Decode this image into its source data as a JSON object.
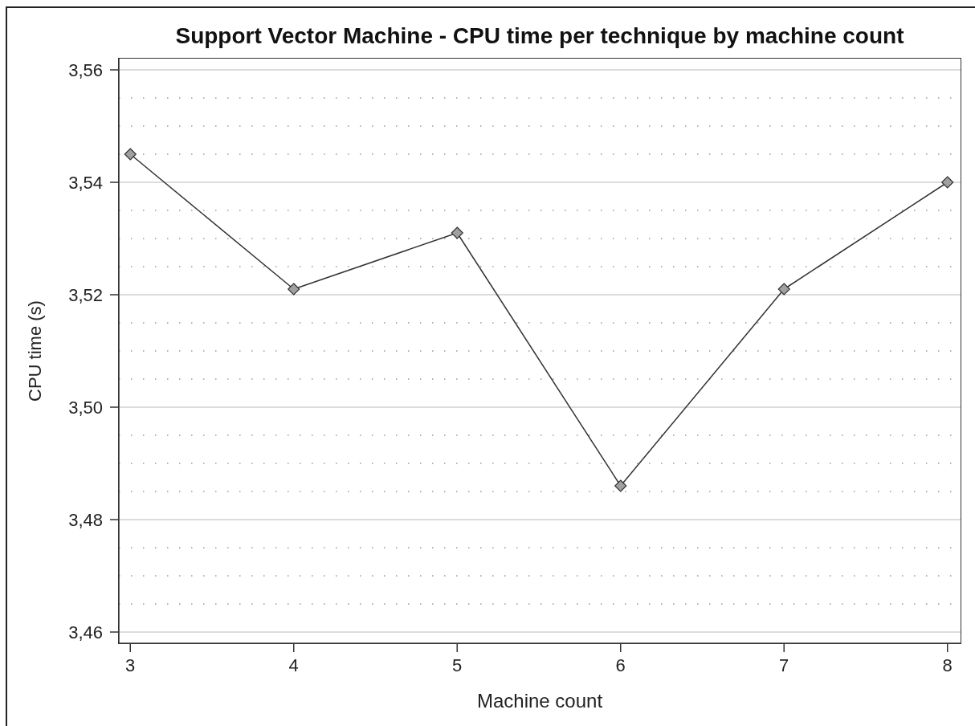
{
  "chart_data": {
    "type": "line",
    "title": "Support Vector Machine - CPU time per technique by machine count",
    "xlabel": "Machine count",
    "ylabel": "CPU time (s)",
    "x": [
      3,
      4,
      5,
      6,
      7,
      8
    ],
    "series": [
      {
        "color": "#333333",
        "values": [
          3.545,
          3.521,
          3.531,
          3.486,
          3.521,
          3.54
        ]
      }
    ],
    "xlim": [
      2.93,
      8.08
    ],
    "xticks": [
      3,
      4,
      5,
      6,
      7,
      8
    ],
    "ylim": [
      3.458,
      3.562
    ],
    "yticks": [
      {
        "value": 3.46,
        "label": "3,46"
      },
      {
        "value": 3.465,
        "label": null
      },
      {
        "value": 3.47,
        "label": null
      },
      {
        "value": 3.475,
        "label": null
      },
      {
        "value": 3.48,
        "label": "3,48"
      },
      {
        "value": 3.485,
        "label": null
      },
      {
        "value": 3.49,
        "label": null
      },
      {
        "value": 3.495,
        "label": null
      },
      {
        "value": 3.5,
        "label": "3,50"
      },
      {
        "value": 3.505,
        "label": null
      },
      {
        "value": 3.51,
        "label": null
      },
      {
        "value": 3.515,
        "label": null
      },
      {
        "value": 3.52,
        "label": "3,52"
      },
      {
        "value": 3.525,
        "label": null
      },
      {
        "value": 3.53,
        "label": null
      },
      {
        "value": 3.535,
        "label": null
      },
      {
        "value": 3.54,
        "label": "3,54"
      },
      {
        "value": 3.545,
        "label": null
      },
      {
        "value": 3.55,
        "label": null
      },
      {
        "value": 3.555,
        "label": null
      },
      {
        "value": 3.56,
        "label": "3,56"
      }
    ],
    "grid": "y",
    "marker": "diamond",
    "line_style": "solid"
  }
}
